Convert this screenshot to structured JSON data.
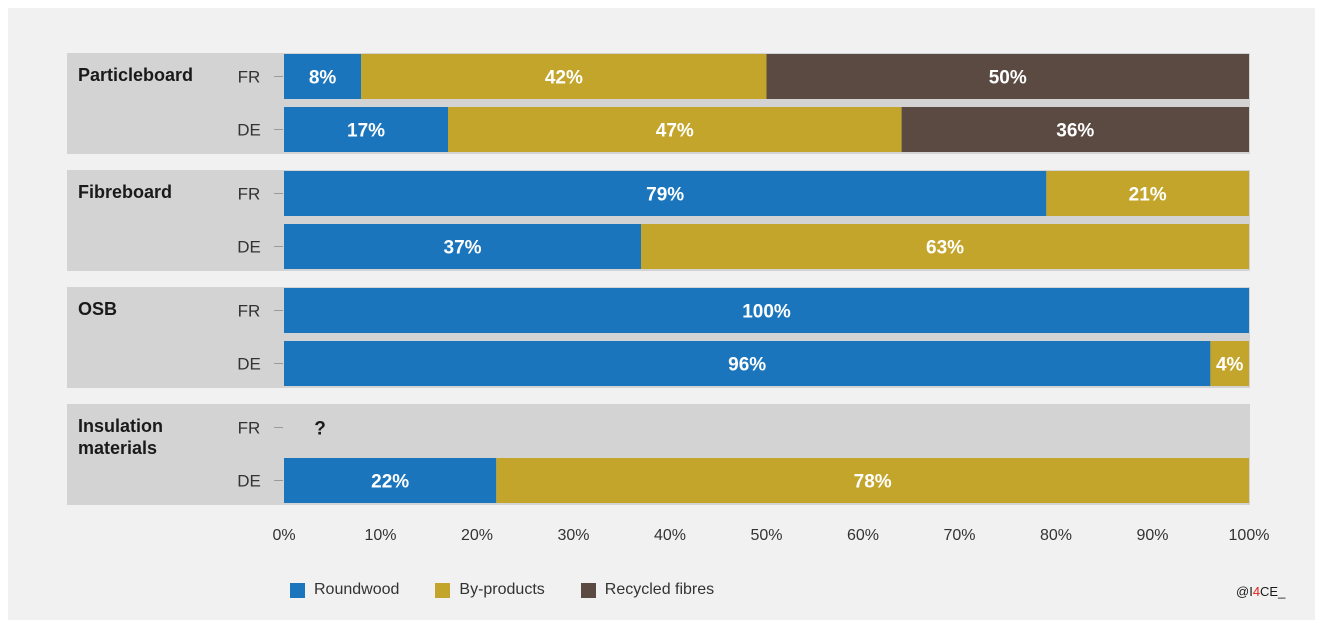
{
  "chart_data": {
    "type": "bar",
    "orientation": "horizontal",
    "stacked": true,
    "groups": [
      {
        "label": "Particleboard",
        "rows": [
          {
            "label": "FR",
            "values": [
              8,
              42,
              50
            ],
            "labels": [
              "8%",
              "42%",
              "50%"
            ]
          },
          {
            "label": "DE",
            "values": [
              17,
              47,
              36
            ],
            "labels": [
              "17%",
              "47%",
              "36%"
            ]
          }
        ]
      },
      {
        "label": "Fibreboard",
        "rows": [
          {
            "label": "FR",
            "values": [
              79,
              21,
              0
            ],
            "labels": [
              "79%",
              "21%",
              ""
            ]
          },
          {
            "label": "DE",
            "values": [
              37,
              63,
              0
            ],
            "labels": [
              "37%",
              "63%",
              ""
            ]
          }
        ]
      },
      {
        "label": "OSB",
        "rows": [
          {
            "label": "FR",
            "values": [
              100,
              0,
              0
            ],
            "labels": [
              "100%",
              "",
              ""
            ]
          },
          {
            "label": "DE",
            "values": [
              96,
              4,
              0
            ],
            "labels": [
              "96%",
              "4%",
              ""
            ]
          }
        ]
      },
      {
        "label": "Insulation materials",
        "rows": [
          {
            "label": "FR",
            "values": null,
            "note": "?"
          },
          {
            "label": "DE",
            "values": [
              22,
              78,
              0
            ],
            "labels": [
              "22%",
              "78%",
              ""
            ]
          }
        ]
      }
    ],
    "series": [
      {
        "name": "Roundwood",
        "color": "#1a75bc"
      },
      {
        "name": "By-products",
        "color": "#c3a52b"
      },
      {
        "name": "Recycled fibres",
        "color": "#5b4a42"
      }
    ],
    "xlim": [
      0,
      100
    ],
    "xticks": [
      "0%",
      "10%",
      "20%",
      "30%",
      "40%",
      "50%",
      "60%",
      "70%",
      "80%",
      "90%",
      "100%"
    ],
    "grid": false,
    "legend_position": "bottom"
  },
  "watermark": {
    "prefix": "@I",
    "accent": "4",
    "suffix": "CE_"
  }
}
